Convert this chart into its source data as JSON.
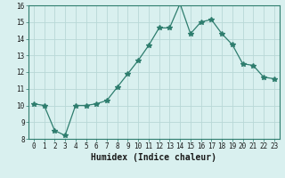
{
  "x": [
    0,
    1,
    2,
    3,
    4,
    5,
    6,
    7,
    8,
    9,
    10,
    11,
    12,
    13,
    14,
    15,
    16,
    17,
    18,
    19,
    20,
    21,
    22,
    23
  ],
  "y": [
    10.1,
    10.0,
    8.5,
    8.2,
    10.0,
    10.0,
    10.1,
    10.3,
    11.1,
    11.9,
    12.7,
    13.6,
    14.65,
    14.65,
    16.1,
    14.3,
    15.0,
    15.15,
    14.3,
    13.65,
    12.5,
    12.4,
    11.7,
    11.6
  ],
  "line_color": "#2e7d6e",
  "marker": "*",
  "marker_size": 4,
  "bg_color": "#d9f0ef",
  "grid_color": "#b8d8d6",
  "xlabel": "Humidex (Indice chaleur)",
  "ylim": [
    8,
    16
  ],
  "xlim": [
    -0.5,
    23.5
  ],
  "yticks": [
    8,
    9,
    10,
    11,
    12,
    13,
    14,
    15,
    16
  ],
  "xticks": [
    0,
    1,
    2,
    3,
    4,
    5,
    6,
    7,
    8,
    9,
    10,
    11,
    12,
    13,
    14,
    15,
    16,
    17,
    18,
    19,
    20,
    21,
    22,
    23
  ],
  "tick_fontsize": 5.5,
  "label_fontsize": 7.0,
  "spine_color": "#2e7d6e"
}
